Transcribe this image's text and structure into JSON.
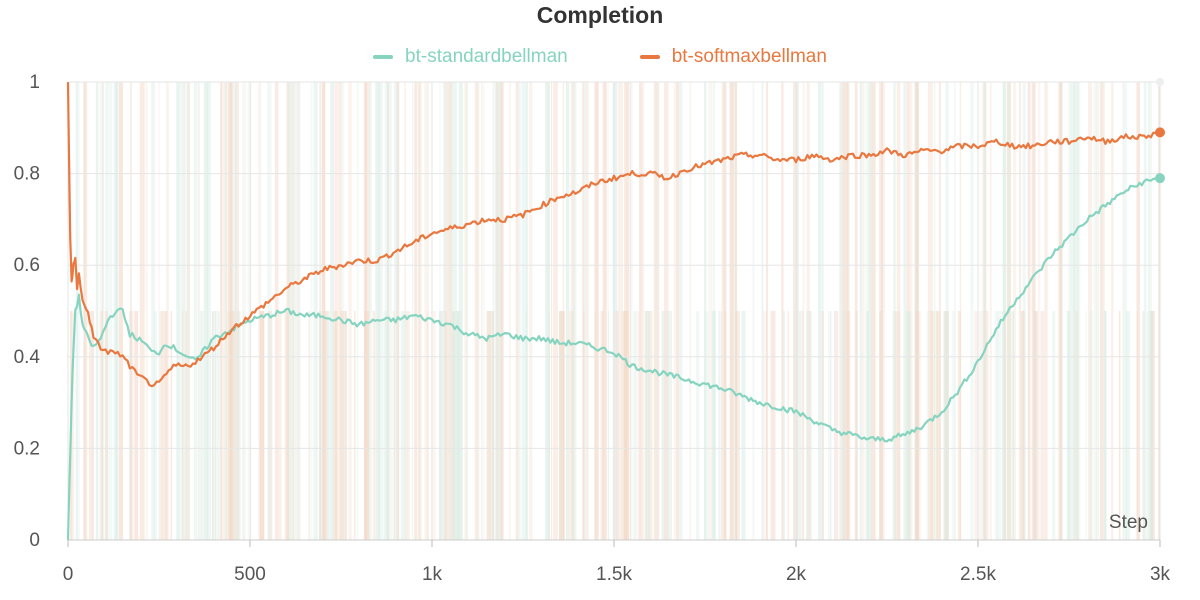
{
  "chart_data": {
    "type": "line",
    "title": "Completion",
    "xlabel": "Step",
    "ylabel": "",
    "xlim": [
      0,
      3000
    ],
    "ylim": [
      0,
      1
    ],
    "x_ticks": [
      0,
      500,
      1000,
      1500,
      2000,
      2500,
      3000
    ],
    "x_tick_labels": [
      "0",
      "500",
      "1k",
      "1.5k",
      "2k",
      "2.5k",
      "3k"
    ],
    "y_ticks": [
      0,
      0.2,
      0.4,
      0.6,
      0.8,
      1
    ],
    "y_tick_labels": [
      "0",
      "0.2",
      "0.4",
      "0.6",
      "0.8",
      "1"
    ],
    "grid": true,
    "legend_position": "top-center",
    "colors": {
      "standard": "#86d4c0",
      "softmax": "#e8783f",
      "grid": "#e6e6e6",
      "text": "#555555"
    },
    "series": [
      {
        "name": "bt-standardbellman",
        "color": "#86d4c0",
        "x": [
          0,
          5,
          10,
          15,
          20,
          30,
          40,
          55,
          70,
          90,
          110,
          130,
          150,
          170,
          190,
          210,
          230,
          250,
          270,
          290,
          310,
          330,
          350,
          370,
          400,
          450,
          500,
          550,
          600,
          650,
          700,
          750,
          800,
          850,
          900,
          950,
          1000,
          1050,
          1100,
          1150,
          1200,
          1250,
          1300,
          1350,
          1400,
          1450,
          1500,
          1550,
          1600,
          1700,
          1800,
          1900,
          2000,
          2050,
          2100,
          2150,
          2200,
          2250,
          2300,
          2350,
          2400,
          2450,
          2500,
          2550,
          2600,
          2650,
          2700,
          2750,
          2800,
          2850,
          2900,
          2950,
          3000
        ],
        "y": [
          0.0,
          0.15,
          0.3,
          0.42,
          0.5,
          0.53,
          0.47,
          0.44,
          0.42,
          0.44,
          0.48,
          0.5,
          0.5,
          0.45,
          0.44,
          0.43,
          0.41,
          0.41,
          0.43,
          0.42,
          0.41,
          0.4,
          0.39,
          0.41,
          0.44,
          0.46,
          0.48,
          0.49,
          0.5,
          0.49,
          0.49,
          0.48,
          0.47,
          0.48,
          0.48,
          0.49,
          0.48,
          0.47,
          0.45,
          0.44,
          0.45,
          0.44,
          0.44,
          0.43,
          0.43,
          0.42,
          0.41,
          0.38,
          0.37,
          0.35,
          0.33,
          0.3,
          0.28,
          0.26,
          0.24,
          0.23,
          0.22,
          0.22,
          0.23,
          0.25,
          0.28,
          0.33,
          0.39,
          0.46,
          0.52,
          0.57,
          0.62,
          0.66,
          0.7,
          0.73,
          0.76,
          0.78,
          0.79
        ]
      },
      {
        "name": "bt-softmaxbellman",
        "color": "#e8783f",
        "x": [
          0,
          3,
          6,
          10,
          15,
          20,
          25,
          30,
          40,
          55,
          70,
          90,
          110,
          130,
          150,
          170,
          190,
          210,
          230,
          250,
          270,
          290,
          310,
          330,
          350,
          370,
          400,
          450,
          500,
          550,
          600,
          650,
          700,
          750,
          800,
          850,
          900,
          950,
          1000,
          1050,
          1100,
          1150,
          1200,
          1250,
          1300,
          1350,
          1400,
          1450,
          1500,
          1550,
          1600,
          1650,
          1700,
          1750,
          1800,
          1850,
          1900,
          1950,
          2000,
          2050,
          2100,
          2150,
          2200,
          2250,
          2300,
          2350,
          2400,
          2450,
          2500,
          2550,
          2600,
          2650,
          2700,
          2750,
          2800,
          2850,
          2900,
          2950,
          3000
        ],
        "y": [
          1.0,
          0.83,
          0.66,
          0.56,
          0.6,
          0.62,
          0.55,
          0.58,
          0.52,
          0.5,
          0.44,
          0.42,
          0.41,
          0.41,
          0.4,
          0.38,
          0.36,
          0.35,
          0.34,
          0.34,
          0.36,
          0.38,
          0.38,
          0.38,
          0.39,
          0.4,
          0.42,
          0.46,
          0.49,
          0.52,
          0.55,
          0.57,
          0.59,
          0.6,
          0.61,
          0.61,
          0.63,
          0.65,
          0.67,
          0.68,
          0.69,
          0.7,
          0.7,
          0.71,
          0.73,
          0.75,
          0.76,
          0.78,
          0.79,
          0.8,
          0.8,
          0.79,
          0.81,
          0.82,
          0.83,
          0.84,
          0.84,
          0.83,
          0.83,
          0.84,
          0.83,
          0.84,
          0.84,
          0.85,
          0.84,
          0.85,
          0.85,
          0.86,
          0.86,
          0.87,
          0.86,
          0.86,
          0.87,
          0.87,
          0.88,
          0.87,
          0.88,
          0.88,
          0.89
        ]
      }
    ]
  }
}
